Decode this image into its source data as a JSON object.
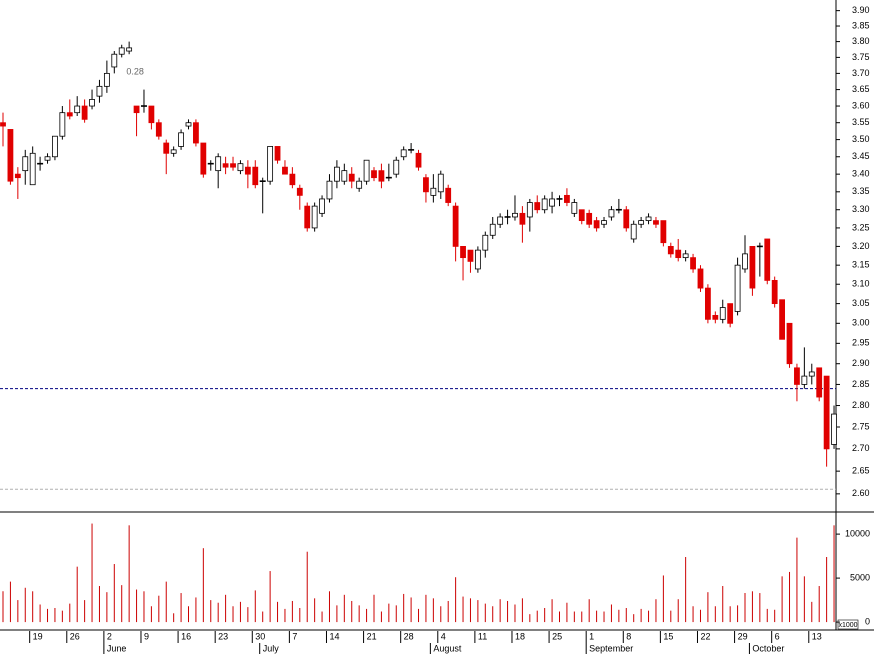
{
  "chart_data": {
    "type": "candlestick",
    "log_scale": true,
    "ylim": [
      2.565,
      3.935
    ],
    "yticks": [
      {
        "value": 2.6,
        "label": "2.60"
      },
      2.65,
      {
        "value": 2.7,
        "label": "2.70"
      },
      2.75,
      {
        "value": 2.8,
        "label": "2.80"
      },
      2.85,
      {
        "value": 2.9,
        "label": "2.90"
      },
      2.95,
      {
        "value": 3.0,
        "label": "3.00"
      },
      3.05,
      {
        "value": 3.1,
        "label": "3.10"
      },
      3.15,
      {
        "value": 3.2,
        "label": "3.20"
      },
      3.25,
      {
        "value": 3.3,
        "label": "3.30"
      },
      3.35,
      {
        "value": 3.4,
        "label": "3.40"
      },
      3.45,
      {
        "value": 3.5,
        "label": "3.50"
      },
      3.55,
      {
        "value": 3.6,
        "label": "3.60"
      },
      3.65,
      {
        "value": 3.7,
        "label": "3.70"
      },
      3.75,
      {
        "value": 3.8,
        "label": "3.80"
      },
      3.85,
      {
        "value": 3.9,
        "label": "3.90"
      }
    ],
    "up_color": "#ffffff",
    "down_color": "#e00000",
    "categories": [
      null,
      null,
      null,
      null,
      "19",
      null,
      null,
      null,
      null,
      "26",
      null,
      null,
      null,
      null,
      "2",
      null,
      null,
      null,
      null,
      "9",
      null,
      null,
      null,
      null,
      "16",
      null,
      null,
      null,
      null,
      "23",
      null,
      null,
      null,
      null,
      "30",
      null,
      null,
      null,
      null,
      "7",
      null,
      null,
      null,
      null,
      "14",
      null,
      null,
      null,
      null,
      "21",
      null,
      null,
      null,
      null,
      "28",
      null,
      null,
      null,
      null,
      "4",
      null,
      null,
      null,
      null,
      "11",
      null,
      null,
      null,
      null,
      "18",
      null,
      null,
      null,
      null,
      "25",
      null,
      null,
      null,
      null,
      "1",
      null,
      null,
      null,
      null,
      "8",
      null,
      null,
      null,
      null,
      "15",
      null,
      null,
      null,
      null,
      "22",
      null,
      null,
      null,
      null,
      "29",
      null,
      null,
      null,
      null,
      "6",
      null,
      null,
      null,
      null,
      "13",
      null,
      null,
      null
    ],
    "months": [
      null,
      null,
      null,
      null,
      null,
      null,
      null,
      null,
      null,
      null,
      null,
      null,
      null,
      null,
      "June",
      null,
      null,
      null,
      null,
      null,
      null,
      null,
      null,
      null,
      null,
      null,
      null,
      null,
      null,
      null,
      null,
      null,
      null,
      null,
      null,
      "July",
      null,
      null,
      null,
      null,
      null,
      null,
      null,
      null,
      null,
      null,
      null,
      null,
      null,
      null,
      null,
      null,
      null,
      null,
      null,
      null,
      null,
      null,
      "August",
      null,
      null,
      null,
      null,
      null,
      null,
      null,
      null,
      null,
      null,
      null,
      null,
      null,
      null,
      null,
      null,
      null,
      null,
      null,
      null,
      "September",
      null,
      null,
      null,
      null,
      null,
      null,
      null,
      null,
      null,
      null,
      null,
      null,
      null,
      null,
      null,
      null,
      null,
      null,
      null,
      null,
      null,
      "October",
      null,
      null,
      null,
      null,
      null,
      null,
      null,
      null,
      null,
      null,
      null
    ],
    "open": [
      3.55,
      3.53,
      3.4,
      3.41,
      3.37,
      3.43,
      3.44,
      3.45,
      3.51,
      3.58,
      3.58,
      3.6,
      3.6,
      3.63,
      3.66,
      3.72,
      3.76,
      3.77,
      3.6,
      3.6,
      3.6,
      3.55,
      3.49,
      3.46,
      3.48,
      3.54,
      3.55,
      3.49,
      3.43,
      3.41,
      3.43,
      3.43,
      3.41,
      3.42,
      3.42,
      3.38,
      3.38,
      3.48,
      3.42,
      3.4,
      3.36,
      3.31,
      3.25,
      3.29,
      3.33,
      3.38,
      3.38,
      3.4,
      3.36,
      3.38,
      3.41,
      3.41,
      3.39,
      3.4,
      3.45,
      3.47,
      3.46,
      3.39,
      3.34,
      3.35,
      3.36,
      3.31,
      3.2,
      3.19,
      3.14,
      3.19,
      3.23,
      3.26,
      3.28,
      3.28,
      3.29,
      3.28,
      3.32,
      3.3,
      3.31,
      3.33,
      3.34,
      3.29,
      3.3,
      3.29,
      3.27,
      3.26,
      3.28,
      3.3,
      3.3,
      3.22,
      3.26,
      3.27,
      3.27,
      3.27,
      3.2,
      3.19,
      3.17,
      3.17,
      3.14,
      3.09,
      3.02,
      3.01,
      3.05,
      3.03,
      3.14,
      3.2,
      3.2,
      3.22,
      3.11,
      3.06,
      3.0,
      2.89,
      2.85,
      2.87,
      2.89,
      2.87,
      2.71
    ],
    "high": [
      3.58,
      3.53,
      3.42,
      3.47,
      3.48,
      3.45,
      3.46,
      3.51,
      3.6,
      3.62,
      3.63,
      3.62,
      3.65,
      3.68,
      3.74,
      3.77,
      3.79,
      3.8,
      3.6,
      3.65,
      3.6,
      3.56,
      3.5,
      3.48,
      3.53,
      3.56,
      3.56,
      3.49,
      3.44,
      3.46,
      3.45,
      3.45,
      3.44,
      3.44,
      3.44,
      3.39,
      3.48,
      3.48,
      3.44,
      3.42,
      3.37,
      3.32,
      3.32,
      3.34,
      3.4,
      3.44,
      3.43,
      3.42,
      3.39,
      3.44,
      3.42,
      3.43,
      3.43,
      3.45,
      3.48,
      3.49,
      3.47,
      3.4,
      3.4,
      3.41,
      3.37,
      3.32,
      3.2,
      3.19,
      3.2,
      3.24,
      3.28,
      3.29,
      3.3,
      3.34,
      3.31,
      3.33,
      3.34,
      3.34,
      3.35,
      3.34,
      3.36,
      3.33,
      3.3,
      3.3,
      3.28,
      3.28,
      3.31,
      3.33,
      3.31,
      3.27,
      3.28,
      3.29,
      3.28,
      3.27,
      3.21,
      3.22,
      3.19,
      3.18,
      3.15,
      3.1,
      3.03,
      3.06,
      3.05,
      3.17,
      3.23,
      3.2,
      3.21,
      3.22,
      3.12,
      3.06,
      3.0,
      2.9,
      2.94,
      2.9,
      2.89,
      2.87,
      2.8
    ],
    "low": [
      3.48,
      3.37,
      3.33,
      3.37,
      3.37,
      3.41,
      3.43,
      3.44,
      3.5,
      3.56,
      3.57,
      3.55,
      3.59,
      3.61,
      3.64,
      3.7,
      3.75,
      3.76,
      3.51,
      3.58,
      3.53,
      3.5,
      3.4,
      3.45,
      3.47,
      3.53,
      3.48,
      3.39,
      3.41,
      3.36,
      3.4,
      3.41,
      3.4,
      3.36,
      3.36,
      3.29,
      3.37,
      3.43,
      3.4,
      3.36,
      3.3,
      3.24,
      3.24,
      3.28,
      3.32,
      3.36,
      3.37,
      3.36,
      3.35,
      3.37,
      3.38,
      3.36,
      3.38,
      3.39,
      3.44,
      3.46,
      3.41,
      3.32,
      3.32,
      3.33,
      3.31,
      3.16,
      3.11,
      3.13,
      3.13,
      3.17,
      3.22,
      3.25,
      3.26,
      3.27,
      3.21,
      3.24,
      3.29,
      3.29,
      3.29,
      3.31,
      3.31,
      3.28,
      3.26,
      3.25,
      3.24,
      3.25,
      3.27,
      3.29,
      3.24,
      3.21,
      3.25,
      3.26,
      3.25,
      3.2,
      3.17,
      3.16,
      3.16,
      3.13,
      3.08,
      3.0,
      3.0,
      3.0,
      2.99,
      3.02,
      3.13,
      3.07,
      3.12,
      3.1,
      3.04,
      2.96,
      2.89,
      2.81,
      2.84,
      2.85,
      2.81,
      2.66,
      2.7
    ],
    "close": [
      3.54,
      3.38,
      3.39,
      3.45,
      3.46,
      3.43,
      3.45,
      3.51,
      3.58,
      3.57,
      3.6,
      3.56,
      3.62,
      3.66,
      3.7,
      3.76,
      3.78,
      3.78,
      3.58,
      3.6,
      3.55,
      3.51,
      3.46,
      3.47,
      3.52,
      3.55,
      3.49,
      3.4,
      3.43,
      3.45,
      3.42,
      3.42,
      3.43,
      3.4,
      3.37,
      3.38,
      3.48,
      3.44,
      3.4,
      3.37,
      3.34,
      3.25,
      3.31,
      3.33,
      3.38,
      3.42,
      3.41,
      3.38,
      3.38,
      3.44,
      3.39,
      3.38,
      3.39,
      3.44,
      3.47,
      3.47,
      3.42,
      3.35,
      3.36,
      3.4,
      3.32,
      3.2,
      3.17,
      3.16,
      3.19,
      3.23,
      3.26,
      3.28,
      3.28,
      3.29,
      3.26,
      3.32,
      3.3,
      3.33,
      3.33,
      3.33,
      3.32,
      3.32,
      3.27,
      3.26,
      3.25,
      3.27,
      3.3,
      3.3,
      3.25,
      3.26,
      3.27,
      3.28,
      3.26,
      3.21,
      3.18,
      3.17,
      3.18,
      3.14,
      3.09,
      3.01,
      3.01,
      3.04,
      3.0,
      3.15,
      3.18,
      3.09,
      3.2,
      3.11,
      3.05,
      2.96,
      2.9,
      2.85,
      2.87,
      2.88,
      2.82,
      2.7,
      2.78
    ],
    "annotation": "0.28",
    "reference_lines": [
      {
        "value": 2.84,
        "color": "#000080",
        "style": "dashed"
      },
      {
        "value": 2.61,
        "color": "#b0b0b0",
        "style": "dashed"
      }
    ],
    "volume": [
      3500,
      4600,
      2500,
      3900,
      3500,
      2000,
      1500,
      1600,
      1300,
      2100,
      6300,
      2500,
      11200,
      4100,
      3400,
      6600,
      4200,
      11000,
      3700,
      3500,
      1800,
      3000,
      4600,
      1000,
      3300,
      1800,
      2800,
      8400,
      2500,
      2200,
      3100,
      1800,
      2300,
      1700,
      3600,
      1200,
      5800,
      2300,
      1500,
      2400,
      1600,
      8000,
      2700,
      1200,
      3500,
      1900,
      3100,
      2400,
      1900,
      1500,
      3100,
      1200,
      2100,
      1900,
      3200,
      2800,
      1500,
      3100,
      2700,
      1800,
      2400,
      5100,
      2900,
      2700,
      2500,
      2100,
      1800,
      2600,
      2400,
      2000,
      2700,
      900,
      1300,
      1600,
      2600,
      1200,
      2200,
      1200,
      1200,
      2600,
      1300,
      1200,
      2000,
      1400,
      1600,
      900,
      1500,
      1300,
      2600,
      5300,
      1300,
      2600,
      7400,
      1800,
      1400,
      3400,
      1800,
      4100,
      1800,
      1900,
      3300,
      3500,
      3300,
      1500,
      1400,
      5200,
      5700,
      9600,
      5200,
      2300,
      4100,
      7400,
      11000
    ],
    "volume_color": "#cc0000",
    "volume_ylim": [
      -900,
      12400
    ],
    "volume_yticks": [
      0,
      5000,
      10000
    ],
    "volume_unit": "x1000"
  }
}
